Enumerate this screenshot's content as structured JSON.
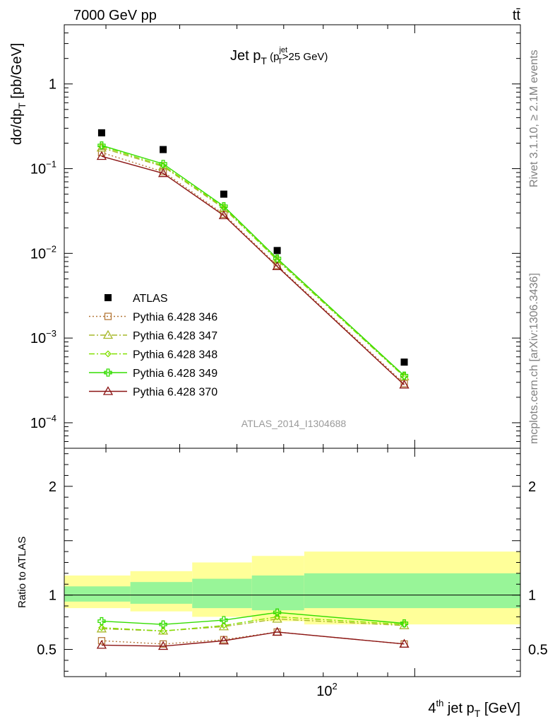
{
  "header": {
    "energy_label": "7000 GeV pp",
    "process_label": "tt̄",
    "side_label_rivet": "Rivet 3.1.10, ≥ 2.1M events",
    "side_label_mcplots": "mcplots.cern.ch [arXiv:1306.3436]",
    "analysis_label": "ATLAS_2014_I1304688"
  },
  "chart_data": [
    {
      "type": "scatter",
      "panel": "main",
      "title": "Jet p_T (p_T^jet>25 GeV)",
      "title_main": "Jet p",
      "title_sub": "T",
      "title_paren_open": " (p",
      "title_paren_sup": "jet",
      "title_paren_sub": "T",
      "title_paren_close": ">25 GeV)",
      "ylabel": "dσ/dp_T [pb/GeV]",
      "ylabel_main": "dσ/dp",
      "ylabel_sub": "T",
      "ylabel_unit": " [pb/GeV]",
      "yscale": "log",
      "ylim": [
        5e-05,
        5
      ],
      "xscale": "log",
      "xlim": [
        25.5,
        151
      ],
      "y_ticks": [
        {
          "value": 1,
          "mant": "1",
          "exp": ""
        },
        {
          "value": 0.1,
          "mant": "10",
          "exp": "−1"
        },
        {
          "value": 0.01,
          "mant": "10",
          "exp": "−2"
        },
        {
          "value": 0.001,
          "mant": "10",
          "exp": "−3"
        },
        {
          "value": 0.0001,
          "mant": "10",
          "exp": "−4"
        }
      ],
      "legend_position": "bottom-left",
      "x": [
        29.5,
        37.5,
        47.5,
        58.5,
        96.0
      ],
      "data": {
        "name": "ATLAS",
        "marker": "square",
        "color": "#000000",
        "values": [
          0.265,
          0.168,
          0.05,
          0.0108,
          0.00052
        ]
      },
      "series": [
        {
          "name": "Pythia 6.428 346",
          "color": "#b5793a",
          "marker": "square-open",
          "dash": "2,3",
          "values": [
            0.155,
            0.092,
            0.029,
            0.0072,
            0.00029
          ]
        },
        {
          "name": "Pythia 6.428 347",
          "color": "#a7b82a",
          "marker": "triangle-open",
          "dash": "8,3,2,3",
          "values": [
            0.176,
            0.106,
            0.034,
            0.0084,
            0.00035
          ]
        },
        {
          "name": "Pythia 6.428 348",
          "color": "#82e000",
          "marker": "diamond-open",
          "dash": "8,3,2,3",
          "values": [
            0.183,
            0.109,
            0.035,
            0.0083,
            0.00035
          ]
        },
        {
          "name": "Pythia 6.428 349",
          "color": "#33dd00",
          "marker": "cross-open",
          "dash": "",
          "values": [
            0.188,
            0.114,
            0.036,
            0.0087,
            0.00036
          ]
        },
        {
          "name": "Pythia 6.428 370",
          "color": "#8b1414",
          "marker": "triangle-open",
          "dash": "",
          "values": [
            0.14,
            0.088,
            0.028,
            0.007,
            0.00028
          ]
        }
      ]
    },
    {
      "type": "line",
      "panel": "ratio",
      "ylabel": "Ratio to ATLAS",
      "ylim": [
        0.25,
        2.35
      ],
      "xscale": "log",
      "xlim": [
        25.5,
        151
      ],
      "y_ticks": [
        0.5,
        1,
        2
      ],
      "y_tick_labels": [
        "0.5",
        "1",
        "2"
      ],
      "xlabel": "4^th jet p_T [GeV]",
      "xlabel_pre": "4",
      "xlabel_sup": "th",
      "xlabel_mid": " jet p",
      "xlabel_sub": "T",
      "xlabel_unit": " [GeV]",
      "x_tick_label_mant": "10",
      "x_tick_label_exp": "2",
      "x_tick_value": 100,
      "x_bins": [
        [
          25.5,
          33
        ],
        [
          33,
          42
        ],
        [
          42,
          53
        ],
        [
          53,
          65
        ],
        [
          65,
          151
        ]
      ],
      "band_outer": [
        [
          0.88,
          1.18
        ],
        [
          0.85,
          1.22
        ],
        [
          0.8,
          1.3
        ],
        [
          0.76,
          1.36
        ],
        [
          0.73,
          1.4
        ]
      ],
      "band_inner": [
        [
          0.94,
          1.08
        ],
        [
          0.92,
          1.12
        ],
        [
          0.88,
          1.15
        ],
        [
          0.86,
          1.18
        ],
        [
          0.88,
          1.2
        ]
      ],
      "x": [
        29.5,
        37.5,
        47.5,
        58.5,
        96.0
      ],
      "series": [
        {
          "name": "Pythia 6.428 346",
          "color": "#b5793a",
          "marker": "square-open",
          "dash": "2,3",
          "values": [
            0.58,
            0.55,
            0.59,
            0.66,
            0.55
          ]
        },
        {
          "name": "Pythia 6.428 347",
          "color": "#a7b82a",
          "marker": "triangle-open",
          "dash": "8,3,2,3",
          "values": [
            0.69,
            0.67,
            0.71,
            0.78,
            0.72
          ]
        },
        {
          "name": "Pythia 6.428 348",
          "color": "#82e000",
          "marker": "diamond-open",
          "dash": "8,3,2,3",
          "values": [
            0.7,
            0.67,
            0.72,
            0.8,
            0.73
          ]
        },
        {
          "name": "Pythia 6.428 349",
          "color": "#33dd00",
          "marker": "cross-open",
          "dash": "",
          "values": [
            0.76,
            0.73,
            0.77,
            0.84,
            0.74
          ]
        },
        {
          "name": "Pythia 6.428 370",
          "color": "#8b1414",
          "marker": "triangle-open",
          "dash": "",
          "values": [
            0.54,
            0.53,
            0.58,
            0.66,
            0.55
          ]
        }
      ],
      "band_colors": {
        "outer": "#ffff99",
        "inner": "#98f598",
        "reference_line": "#000000"
      }
    }
  ]
}
